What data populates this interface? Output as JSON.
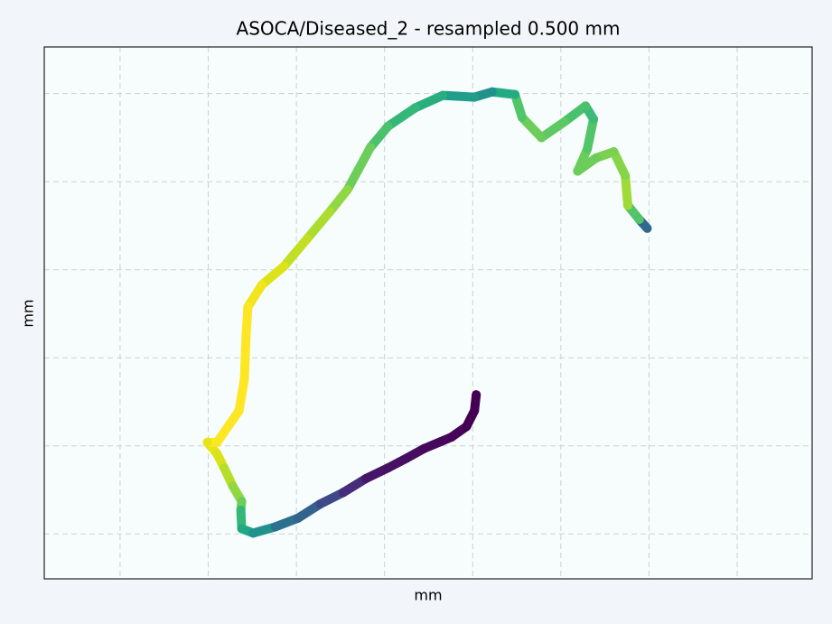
{
  "chart_data": {
    "type": "scatter",
    "title": "ASOCA/Diseased_2 - resampled 0.500 mm",
    "xlabel": "mm",
    "ylabel": "mm",
    "x": [
      50.4,
      50.2,
      49.3,
      47.6,
      44.5,
      42.5,
      40.4,
      37.9,
      35.3,
      32.7,
      30.2,
      27.6,
      25.1,
      23.8,
      23.7,
      23.8,
      22.8,
      21.8,
      21.0,
      19.9,
      21.0,
      23.5,
      24.1,
      24.3,
      24.5,
      26.1,
      28.6,
      31.2,
      33.8,
      35.8,
      38.4,
      40.4,
      43.5,
      46.6,
      50.2,
      52.2,
      54.8,
      55.6,
      57.8,
      60.4,
      62.8,
      63.7,
      63.0,
      61.9,
      64.0,
      66.0,
      67.3,
      67.6,
      68.9,
      69.8
    ],
    "y": [
      25.8,
      24.0,
      22.2,
      21.0,
      19.7,
      18.6,
      17.5,
      16.3,
      14.7,
      13.4,
      11.8,
      10.8,
      10.1,
      10.6,
      12.7,
      13.7,
      15.4,
      17.5,
      19.1,
      20.4,
      20.4,
      24.0,
      27.6,
      32.7,
      35.8,
      38.3,
      40.4,
      43.5,
      46.6,
      49.1,
      53.9,
      56.3,
      58.4,
      59.8,
      59.6,
      60.2,
      59.9,
      57.3,
      55.0,
      56.8,
      58.6,
      57.1,
      53.7,
      51.2,
      52.7,
      53.4,
      50.7,
      47.3,
      45.7,
      44.7
    ],
    "colors": [
      "#440154",
      "#440154",
      "#440154",
      "#450559",
      "#46085c",
      "#470d60",
      "#471063",
      "#481467",
      "#472c7a",
      "#3e4989",
      "#33638d",
      "#2d708e",
      "#21918c",
      "#22a884",
      "#35b779",
      "#6ccd5a",
      "#90d743",
      "#b5de2b",
      "#dae319",
      "#e5e419",
      "#fde725",
      "#fde725",
      "#fde725",
      "#fde725",
      "#fde725",
      "#f1e51d",
      "#dde318",
      "#c2df23",
      "#addc30",
      "#90d743",
      "#6ccd5a",
      "#4ac16d",
      "#35b779",
      "#29af7f",
      "#1f9e89",
      "#21918c",
      "#25ab82",
      "#52c569",
      "#6ccd5a",
      "#5ec962",
      "#4ac16d",
      "#3bbb75",
      "#52c569",
      "#6ccd5a",
      "#6ccd5a",
      "#7ad151",
      "#86d549",
      "#a0da39",
      "#52c569",
      "#31688e"
    ],
    "xlim": [
      1.4,
      88.5
    ],
    "ylim": [
      4.9,
      65.3
    ],
    "xticks": [
      10,
      20,
      30,
      40,
      50,
      60,
      70,
      80
    ],
    "yticks": [
      10,
      20,
      30,
      40,
      50,
      60
    ],
    "grid": true
  }
}
